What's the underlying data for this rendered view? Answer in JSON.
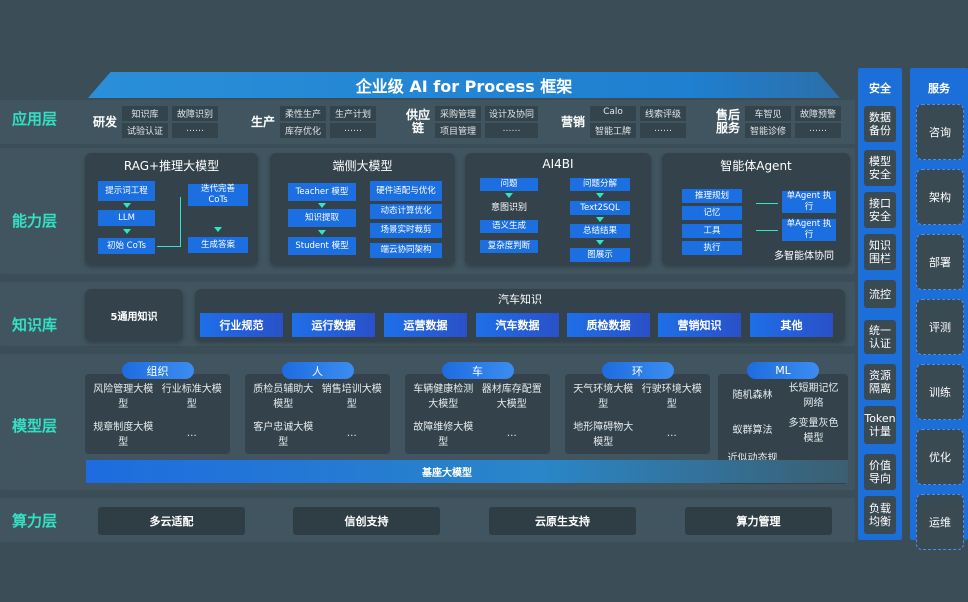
{
  "title": "企业级 AI for Process 框架",
  "layers": {
    "app": "应用层",
    "capability": "能力层",
    "knowledge": "知识库",
    "model": "模型层",
    "compute": "算力层"
  },
  "app_groups": [
    {
      "name": "研发",
      "items": [
        "知识库",
        "故障识别",
        "试验认证",
        "……"
      ]
    },
    {
      "name": "生产",
      "items": [
        "柔性生产",
        "生产计划",
        "库存优化",
        "……"
      ]
    },
    {
      "name": "供应链",
      "items": [
        "采购管理",
        "设计及协同",
        "项目管理",
        "……"
      ]
    },
    {
      "name": "营销",
      "items": [
        "Calo",
        "线索评级",
        "智能工牌",
        "……"
      ]
    },
    {
      "name": "售后服务",
      "items": [
        "车智见",
        "故障预警",
        "智能诊修",
        "……"
      ]
    }
  ],
  "capability": {
    "rag": {
      "title": "RAG+推理大模型",
      "items": [
        "提示词工程",
        "LLM",
        "初始 CoTs",
        "迭代完善 CoTs",
        "生成答案"
      ]
    },
    "edge": {
      "title": "端侧大模型",
      "items": [
        "Teacher 模型",
        "知识提取",
        "Student 模型",
        "硬件适配与优化",
        "动态计算优化",
        "场景实时裁剪",
        "端云协同架构"
      ]
    },
    "ai4bi": {
      "title": "AI4BI",
      "items": [
        "问题",
        "意图识别",
        "语义生成",
        "复杂度判断",
        "问题分解",
        "Text2SQL",
        "总结结果",
        "图展示"
      ]
    },
    "agent": {
      "title": "智能体Agent",
      "items": [
        "推理规划",
        "记忆",
        "工具",
        "执行",
        "单Agent 执行",
        "单Agent 执行",
        "多智能体协同"
      ]
    }
  },
  "knowledge": {
    "general": "5通用知识",
    "auto_title": "汽车知识",
    "items": [
      "行业规范",
      "运行数据",
      "运营数据",
      "汽车数据",
      "质检数据",
      "营销知识",
      "其他"
    ]
  },
  "model": {
    "groups": [
      {
        "name": "组织",
        "items": [
          "风险管理大模型",
          "行业标准大模型",
          "规章制度大模型",
          "…"
        ]
      },
      {
        "name": "人",
        "items": [
          "质检员辅助大模型",
          "销售培训大模型",
          "客户忠诚大模型",
          "…"
        ]
      },
      {
        "name": "车",
        "items": [
          "车辆健康检测大模型",
          "器材库存配置大模型",
          "故障维修大模型",
          "…"
        ]
      },
      {
        "name": "环",
        "items": [
          "天气环境大模型",
          "行驶环境大模型",
          "地形障碍物大模型",
          "…"
        ]
      },
      {
        "name": "ML",
        "items": [
          "随机森林",
          "长短期记忆网络",
          "蚁群算法",
          "多变量灰色模型",
          "近似动态规划",
          "…"
        ]
      }
    ],
    "base": "基座大模型"
  },
  "compute": [
    "多云适配",
    "信创支持",
    "云原生支持",
    "算力管理"
  ],
  "security": {
    "title": "安全",
    "items": [
      "数据备份",
      "模型安全",
      "接口安全",
      "知识围栏",
      "流控",
      "统一认证",
      "资源隔离",
      "Token计量",
      "价值导向",
      "负载均衡"
    ]
  },
  "service": {
    "title": "服务",
    "items": [
      "咨询",
      "架构",
      "部署",
      "评测",
      "训练",
      "优化",
      "运维"
    ]
  },
  "colors": {
    "background": "#3b4d56",
    "accent": "#1b6fe0",
    "label": "#33e0c4"
  }
}
